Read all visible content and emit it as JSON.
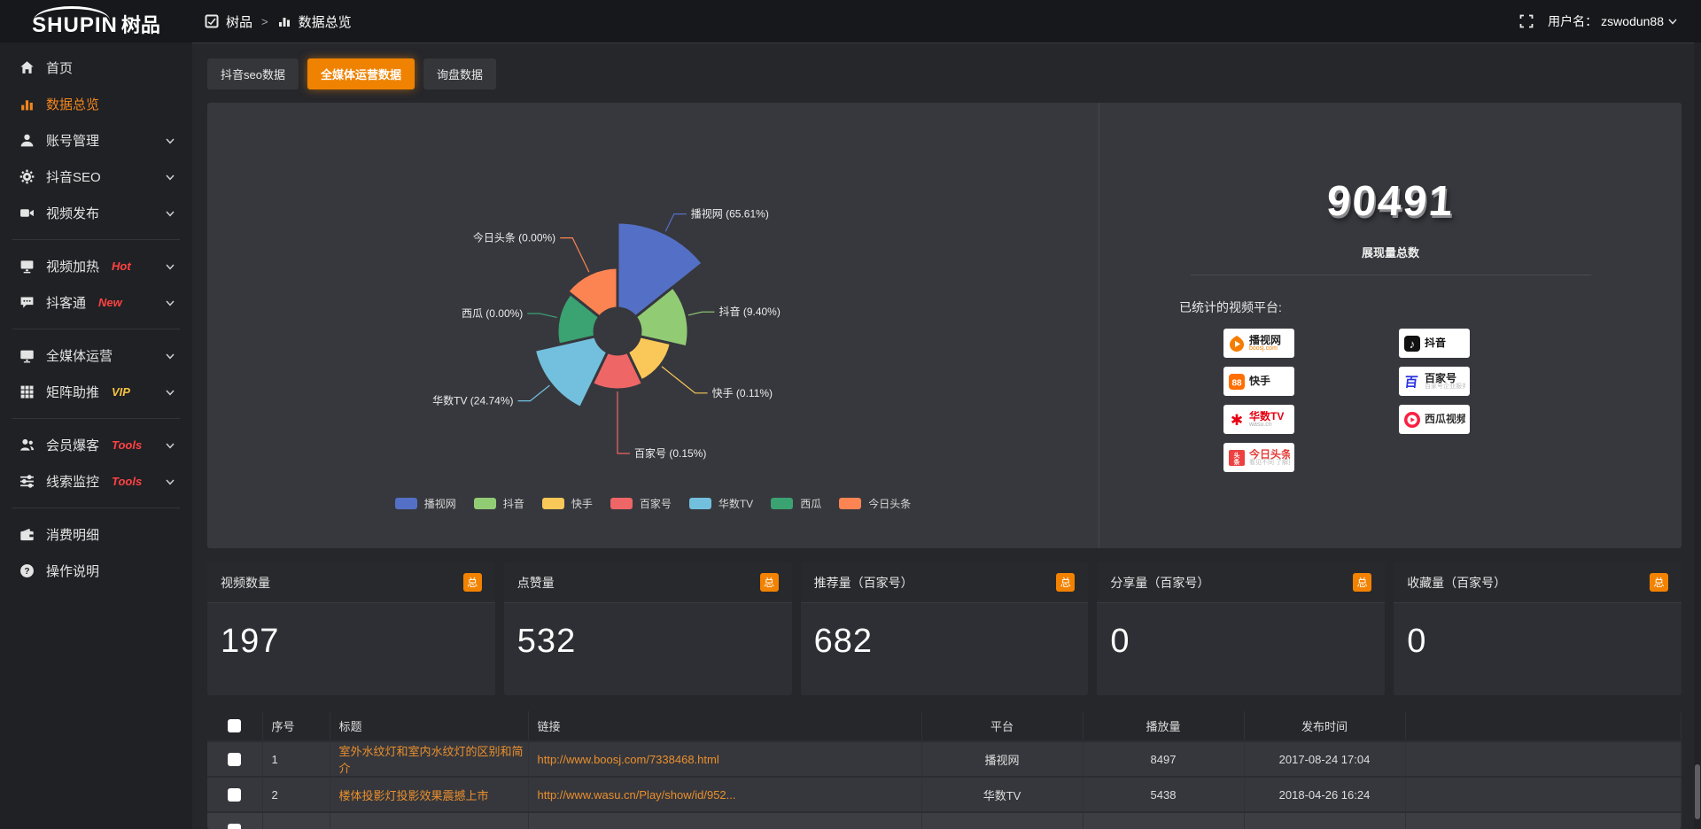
{
  "topbar": {
    "logo_latin": "SHUPIN",
    "logo_cjk": "树品",
    "breadcrumb": {
      "root": "树品",
      "separator": ">",
      "current": "数据总览"
    },
    "username_label": "用户名：",
    "username": "zswodun88"
  },
  "sidebar": {
    "items": [
      {
        "type": "item",
        "label": "首页",
        "icon": "home"
      },
      {
        "type": "item",
        "label": "数据总览",
        "icon": "bar-chart",
        "active": true
      },
      {
        "type": "item",
        "label": "账号管理",
        "icon": "user",
        "expandable": true
      },
      {
        "type": "item",
        "label": "抖音SEO",
        "icon": "gear",
        "expandable": true
      },
      {
        "type": "item",
        "label": "视频发布",
        "icon": "video",
        "expandable": true
      },
      {
        "type": "divider"
      },
      {
        "type": "item",
        "label": "视频加热",
        "icon": "screen",
        "expandable": true,
        "badge": {
          "text": "Hot",
          "color": "#ff4242"
        }
      },
      {
        "type": "item",
        "label": "抖客通",
        "icon": "chat",
        "expandable": true,
        "badge": {
          "text": "New",
          "color": "#ff4242"
        }
      },
      {
        "type": "divider"
      },
      {
        "type": "item",
        "label": "全媒体运营",
        "icon": "monitor",
        "expandable": true
      },
      {
        "type": "item",
        "label": "矩阵助推",
        "icon": "grid",
        "expandable": true,
        "badge": {
          "text": "VIP",
          "color": "#f5c242"
        }
      },
      {
        "type": "divider"
      },
      {
        "type": "item",
        "label": "会员爆客",
        "icon": "users",
        "expandable": true,
        "badge": {
          "text": "Tools",
          "color": "#ff4242"
        }
      },
      {
        "type": "item",
        "label": "线索监控",
        "icon": "sliders",
        "expandable": true,
        "badge": {
          "text": "Tools",
          "color": "#ff4242"
        }
      },
      {
        "type": "divider"
      },
      {
        "type": "item",
        "label": "消费明细",
        "icon": "wallet"
      },
      {
        "type": "item",
        "label": "操作说明",
        "icon": "question"
      }
    ]
  },
  "tabs": [
    {
      "label": "抖音seo数据",
      "active": false
    },
    {
      "label": "全媒体运营数据",
      "active": true
    },
    {
      "label": "询盘数据",
      "active": false
    }
  ],
  "chart_data": {
    "type": "pie",
    "variant": "nightingale-rose",
    "legend_position": "bottom",
    "slices": [
      {
        "name": "播视网",
        "pct": 65.61,
        "color": "#5470c6"
      },
      {
        "name": "抖音",
        "pct": 9.4,
        "color": "#91cc75"
      },
      {
        "name": "快手",
        "pct": 0.11,
        "color": "#fac858"
      },
      {
        "name": "百家号",
        "pct": 0.15,
        "color": "#ee6666"
      },
      {
        "name": "华数TV",
        "pct": 24.74,
        "color": "#73c0de"
      },
      {
        "name": "西瓜",
        "pct": 0.0,
        "color": "#3ba272"
      },
      {
        "name": "今日头条",
        "pct": 0.0,
        "color": "#fc8452"
      }
    ]
  },
  "summary": {
    "total_value": "90491",
    "total_label": "展现量总数",
    "platforms_label": "已统计的视频平台:",
    "platforms": [
      {
        "name": "播视网",
        "sub": "boosj.com",
        "icon": "boosj",
        "brand_color": "#222222",
        "sub_color": "#f28200"
      },
      {
        "name": "抖音",
        "sub": "",
        "icon": "douyin",
        "brand_color": "#111111",
        "sub_color": ""
      },
      {
        "name": "快手",
        "sub": "",
        "icon": "kuaishou",
        "brand_color": "#222222",
        "sub_color": ""
      },
      {
        "name": "百家号",
        "sub": "百家号企业服务平台",
        "icon": "baijia",
        "brand_color": "#222222",
        "sub_color": "#bbbbbb"
      },
      {
        "name": "华数TV",
        "sub": "wasu.cn",
        "icon": "wasu",
        "brand_color": "#e60012",
        "sub_color": "#aaaaaa"
      },
      {
        "name": "西瓜视频",
        "sub": "",
        "icon": "xigua",
        "brand_color": "#333333",
        "sub_color": ""
      },
      {
        "name": "今日头条",
        "sub": "看见不同 了解更多",
        "icon": "toutiao",
        "brand_color": "#e33e38",
        "sub_color": "#bbbbbb"
      }
    ]
  },
  "stat_cards": [
    {
      "title": "视频数量",
      "badge": "总",
      "value": "197"
    },
    {
      "title": "点赞量",
      "badge": "总",
      "value": "532"
    },
    {
      "title": "推荐量（百家号）",
      "badge": "总",
      "value": "682"
    },
    {
      "title": "分享量（百家号）",
      "badge": "总",
      "value": "0"
    },
    {
      "title": "收藏量（百家号）",
      "badge": "总",
      "value": "0"
    }
  ],
  "table": {
    "headers": [
      "序号",
      "标题",
      "链接",
      "平台",
      "播放量",
      "发布时间"
    ],
    "rows": [
      {
        "index": "1",
        "title": "室外水纹灯和室内水纹灯的区别和简介",
        "link": "http://www.boosj.com/7338468.html",
        "platform": "播视网",
        "plays": "8497",
        "published": "2017-08-24 17:04"
      },
      {
        "index": "2",
        "title": "楼体投影灯投影效果震撼上市",
        "link": "http://www.wasu.cn/Play/show/id/952...",
        "platform": "华数TV",
        "plays": "5438",
        "published": "2018-04-26 16:24"
      }
    ]
  }
}
